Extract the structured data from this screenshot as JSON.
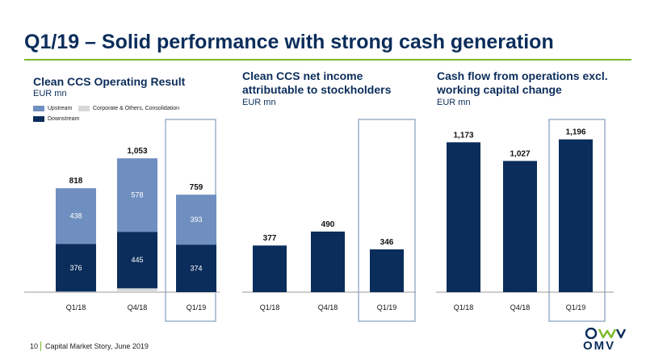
{
  "slide": {
    "title": "Q1/19 – Solid performance with strong cash generation",
    "footer_page": "10",
    "footer_text": "Capital Market Story, June 2019",
    "logo_text": "OMV"
  },
  "colors": {
    "upstream": "#6f8fc0",
    "downstream": "#0b2d5b",
    "corporate": "#d9d9d9",
    "highlight_box": "#9ab0c8",
    "accent_rule": "#7ab929"
  },
  "chart_data": [
    {
      "type": "bar",
      "stacked": true,
      "title": "Clean CCS Operating Result",
      "unit": "EUR mn",
      "categories": [
        "Q1/18",
        "Q4/18",
        "Q1/19"
      ],
      "series": [
        {
          "name": "Corporate & Others, Consolidation",
          "values": [
            4,
            30,
            -8
          ],
          "labels": [
            "",
            "",
            ""
          ]
        },
        {
          "name": "Downstream",
          "values": [
            376,
            445,
            374
          ],
          "labels": [
            "376",
            "445",
            "374"
          ]
        },
        {
          "name": "Upstream",
          "values": [
            438,
            578,
            393
          ],
          "labels": [
            "438",
            "578",
            "393"
          ]
        }
      ],
      "totals": [
        818,
        1053,
        759
      ],
      "total_labels": [
        "818",
        "1,053",
        "759"
      ],
      "highlight_category": "Q1/19",
      "legend": [
        {
          "name": "Upstream",
          "color": "#6f8fc0"
        },
        {
          "name": "Corporate & Others, Consolidation",
          "color": "#d9d9d9"
        },
        {
          "name": "Downstream",
          "color": "#0b2d5b"
        }
      ],
      "grid": false
    },
    {
      "type": "bar",
      "title": "Clean CCS net income attributable to stockholders",
      "unit": "EUR mn",
      "categories": [
        "Q1/18",
        "Q4/18",
        "Q1/19"
      ],
      "values": [
        377,
        490,
        346
      ],
      "value_labels": [
        "377",
        "490",
        "346"
      ],
      "highlight_category": "Q1/19",
      "grid": false
    },
    {
      "type": "bar",
      "title": "Cash flow from operations excl. working capital change",
      "unit": "EUR mn",
      "categories": [
        "Q1/18",
        "Q4/18",
        "Q1/19"
      ],
      "values": [
        1173,
        1027,
        1196
      ],
      "value_labels": [
        "1,173",
        "1,027",
        "1,196"
      ],
      "highlight_category": "Q1/19",
      "grid": false
    }
  ]
}
